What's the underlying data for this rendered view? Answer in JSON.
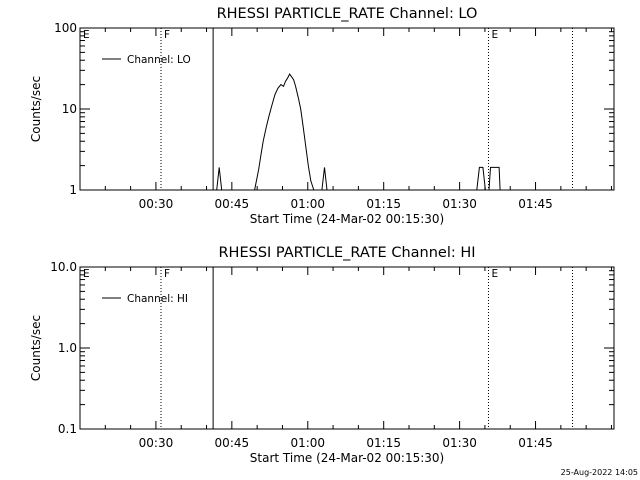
{
  "chart_data": [
    {
      "type": "line",
      "title": "RHESSI PARTICLE_RATE Channel: LO",
      "xlabel": "Start Time (24-Mar-02 00:15:30)",
      "ylabel": "Counts/sec",
      "y_scale": "log",
      "ylim": [
        1,
        100
      ],
      "xlim_minutes": [
        0,
        105.5
      ],
      "y_ticks": [
        {
          "v": 1,
          "label": "1"
        },
        {
          "v": 10,
          "label": "10"
        },
        {
          "v": 100,
          "label": "100"
        }
      ],
      "x_ticks": [
        {
          "t": 15,
          "label": "00:30"
        },
        {
          "t": 30,
          "label": "00:45"
        },
        {
          "t": 45,
          "label": "01:00"
        },
        {
          "t": 60,
          "label": "01:15"
        },
        {
          "t": 75,
          "label": "01:30"
        },
        {
          "t": 90,
          "label": "01:45"
        }
      ],
      "legend": {
        "placement": "top-left",
        "label": "Channel: LO"
      },
      "markers": [
        {
          "t": 0,
          "label": "E",
          "style": "none"
        },
        {
          "t": 16.0,
          "label": "F",
          "style": "dotted"
        },
        {
          "t": 26.3,
          "label": "",
          "style": "solid"
        },
        {
          "t": 80.7,
          "label": "E",
          "style": "dotted"
        },
        {
          "t": 97.3,
          "label": "",
          "style": "dotted"
        }
      ],
      "series": [
        {
          "name": "Channel: LO",
          "segments": [
            [
              [
                27.0,
                1.0
              ],
              [
                27.5,
                1.9
              ],
              [
                28.0,
                1.0
              ]
            ],
            [
              [
                34.5,
                1.0
              ],
              [
                35.3,
                1.8
              ],
              [
                35.7,
                2.6
              ],
              [
                36.2,
                4.0
              ],
              [
                36.8,
                6.0
              ],
              [
                37.3,
                8.0
              ],
              [
                37.9,
                11.0
              ],
              [
                38.5,
                15.0
              ],
              [
                39.1,
                18.0
              ],
              [
                39.7,
                20.0
              ],
              [
                40.2,
                19.0
              ],
              [
                40.6,
                22.0
              ],
              [
                41.0,
                24.0
              ],
              [
                41.4,
                27.0
              ],
              [
                41.8,
                25.0
              ],
              [
                42.2,
                23.0
              ],
              [
                42.6,
                19.0
              ],
              [
                43.1,
                14.0
              ],
              [
                43.6,
                10.0
              ],
              [
                44.1,
                6.0
              ],
              [
                44.6,
                3.5
              ],
              [
                45.1,
                2.0
              ],
              [
                45.6,
                1.3
              ],
              [
                46.2,
                1.0
              ]
            ],
            [
              [
                47.8,
                1.0
              ],
              [
                48.3,
                1.9
              ],
              [
                48.8,
                1.0
              ]
            ],
            [
              [
                78.4,
                1.0
              ],
              [
                78.9,
                1.9
              ],
              [
                79.6,
                1.9
              ],
              [
                80.1,
                1.0
              ]
            ],
            [
              [
                80.8,
                1.0
              ],
              [
                81.1,
                1.9
              ],
              [
                82.8,
                1.9
              ],
              [
                83.0,
                1.0
              ]
            ]
          ]
        }
      ]
    },
    {
      "type": "line",
      "title": "RHESSI PARTICLE_RATE Channel: HI",
      "xlabel": "Start Time (24-Mar-02 00:15:30)",
      "ylabel": "Counts/sec",
      "y_scale": "log",
      "ylim": [
        0.1,
        10
      ],
      "xlim_minutes": [
        0,
        105.5
      ],
      "y_ticks": [
        {
          "v": 0.1,
          "label": "0.1"
        },
        {
          "v": 1,
          "label": "1.0"
        },
        {
          "v": 10,
          "label": "10.0"
        }
      ],
      "x_ticks": [
        {
          "t": 15,
          "label": "00:30"
        },
        {
          "t": 30,
          "label": "00:45"
        },
        {
          "t": 45,
          "label": "01:00"
        },
        {
          "t": 60,
          "label": "01:15"
        },
        {
          "t": 75,
          "label": "01:30"
        },
        {
          "t": 90,
          "label": "01:45"
        }
      ],
      "legend": {
        "placement": "top-left",
        "label": "Channel: HI"
      },
      "markers": [
        {
          "t": 0,
          "label": "E",
          "style": "none"
        },
        {
          "t": 16.0,
          "label": "F",
          "style": "dotted"
        },
        {
          "t": 26.3,
          "label": "",
          "style": "solid"
        },
        {
          "t": 80.7,
          "label": "E",
          "style": "dotted"
        },
        {
          "t": 97.3,
          "label": "",
          "style": "dotted"
        }
      ],
      "series": [
        {
          "name": "Channel: HI",
          "segments": []
        }
      ]
    }
  ],
  "footer": {
    "stamp": "25-Aug-2022 14:05"
  }
}
